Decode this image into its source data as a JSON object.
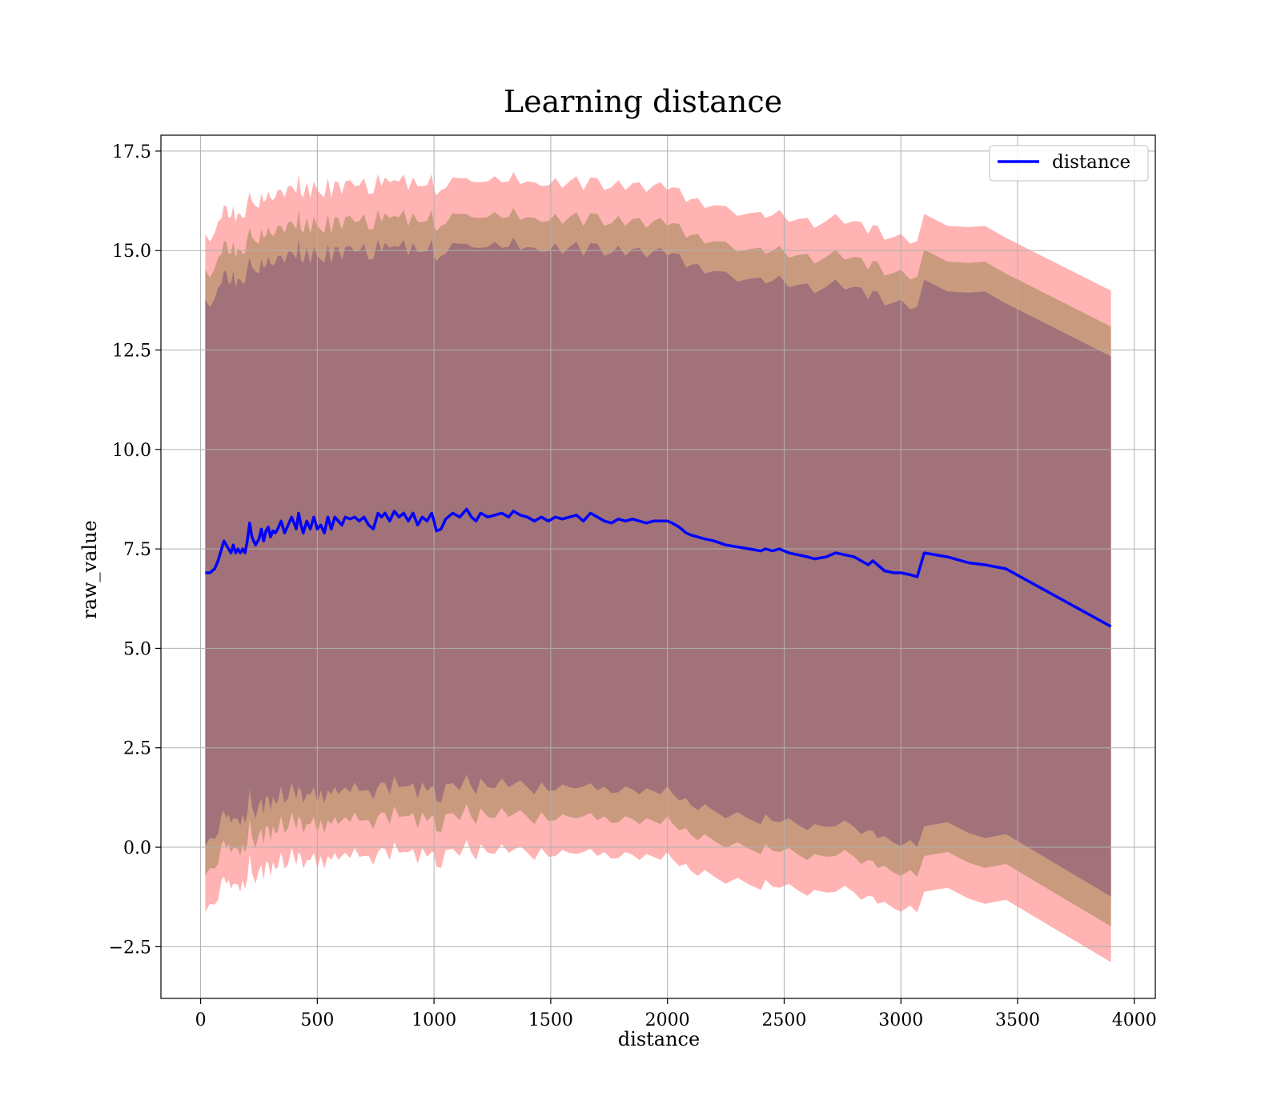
{
  "chart_data": {
    "type": "line",
    "title": "Learning distance",
    "xlabel": "distance",
    "ylabel": "raw_value",
    "xlim": [
      -170,
      4090
    ],
    "ylim": [
      -3.8,
      17.9
    ],
    "x_ticks": [
      0,
      500,
      1000,
      1500,
      2000,
      2500,
      3000,
      3500,
      4000
    ],
    "x_tick_labels": [
      "0",
      "500",
      "1000",
      "1500",
      "2000",
      "2500",
      "3000",
      "3500",
      "4000"
    ],
    "y_ticks": [
      -2.5,
      0.0,
      2.5,
      5.0,
      7.5,
      10.0,
      12.5,
      15.0,
      17.5
    ],
    "y_tick_labels": [
      "−2.5",
      "0.0",
      "2.5",
      "5.0",
      "7.5",
      "10.0",
      "12.5",
      "15.0",
      "17.5"
    ],
    "grid": true,
    "legend": {
      "position": "top-right",
      "entries": [
        "distance"
      ]
    },
    "colors": {
      "line": "#0000ff",
      "band_outer": "#ffb3b3",
      "band_middle": "#c99a7e",
      "band_inner": "#a1727a",
      "grid": "#b0b0b0"
    },
    "series": [
      {
        "name": "distance",
        "x": [
          20,
          40,
          60,
          75,
          90,
          100,
          110,
          120,
          130,
          140,
          150,
          160,
          170,
          180,
          190,
          200,
          210,
          220,
          235,
          250,
          260,
          270,
          280,
          290,
          300,
          310,
          320,
          330,
          345,
          360,
          375,
          390,
          410,
          420,
          430,
          440,
          455,
          470,
          485,
          500,
          515,
          530,
          545,
          560,
          575,
          590,
          605,
          620,
          640,
          660,
          680,
          700,
          720,
          740,
          760,
          775,
          790,
          810,
          830,
          850,
          870,
          890,
          910,
          930,
          950,
          970,
          990,
          1000,
          1010,
          1030,
          1050,
          1080,
          1110,
          1140,
          1160,
          1180,
          1200,
          1230,
          1260,
          1290,
          1320,
          1340,
          1370,
          1400,
          1430,
          1460,
          1490,
          1520,
          1550,
          1580,
          1610,
          1640,
          1670,
          1700,
          1730,
          1760,
          1790,
          1820,
          1850,
          1880,
          1910,
          1940,
          1970,
          2000,
          2020,
          2050,
          2080,
          2100,
          2130,
          2160,
          2200,
          2250,
          2300,
          2350,
          2400,
          2420,
          2450,
          2480,
          2520,
          2560,
          2600,
          2630,
          2680,
          2720,
          2760,
          2800,
          2830,
          2860,
          2880,
          2900,
          2930,
          2970,
          3000,
          3040,
          3070,
          3100,
          3200,
          3290,
          3360,
          3450,
          3900
        ],
        "values": [
          6.9,
          6.9,
          7.0,
          7.2,
          7.5,
          7.7,
          7.6,
          7.5,
          7.4,
          7.6,
          7.4,
          7.5,
          7.4,
          7.5,
          7.4,
          7.7,
          8.15,
          7.8,
          7.6,
          7.75,
          8.0,
          7.7,
          7.95,
          8.05,
          7.8,
          7.95,
          7.9,
          8.0,
          8.2,
          7.9,
          8.1,
          8.3,
          8.0,
          8.4,
          8.1,
          7.9,
          8.2,
          8.0,
          8.3,
          8.0,
          8.1,
          7.9,
          8.3,
          8.0,
          8.3,
          8.2,
          8.1,
          8.3,
          8.25,
          8.3,
          8.2,
          8.3,
          8.1,
          8.0,
          8.4,
          8.3,
          8.4,
          8.2,
          8.45,
          8.3,
          8.4,
          8.2,
          8.4,
          8.1,
          8.3,
          8.2,
          8.4,
          8.2,
          7.95,
          8.0,
          8.25,
          8.4,
          8.3,
          8.5,
          8.3,
          8.2,
          8.4,
          8.3,
          8.35,
          8.4,
          8.3,
          8.45,
          8.35,
          8.3,
          8.2,
          8.3,
          8.2,
          8.3,
          8.25,
          8.3,
          8.35,
          8.2,
          8.4,
          8.3,
          8.2,
          8.15,
          8.25,
          8.2,
          8.25,
          8.2,
          8.15,
          8.2,
          8.2,
          8.2,
          8.15,
          8.05,
          7.9,
          7.85,
          7.8,
          7.75,
          7.7,
          7.6,
          7.55,
          7.5,
          7.45,
          7.5,
          7.45,
          7.5,
          7.4,
          7.35,
          7.3,
          7.25,
          7.3,
          7.4,
          7.35,
          7.3,
          7.2,
          7.1,
          7.2,
          7.1,
          6.95,
          6.9,
          6.9,
          6.85,
          6.8,
          7.4,
          7.3,
          7.15,
          7.1,
          7.0,
          5.55
        ]
      }
    ]
  }
}
